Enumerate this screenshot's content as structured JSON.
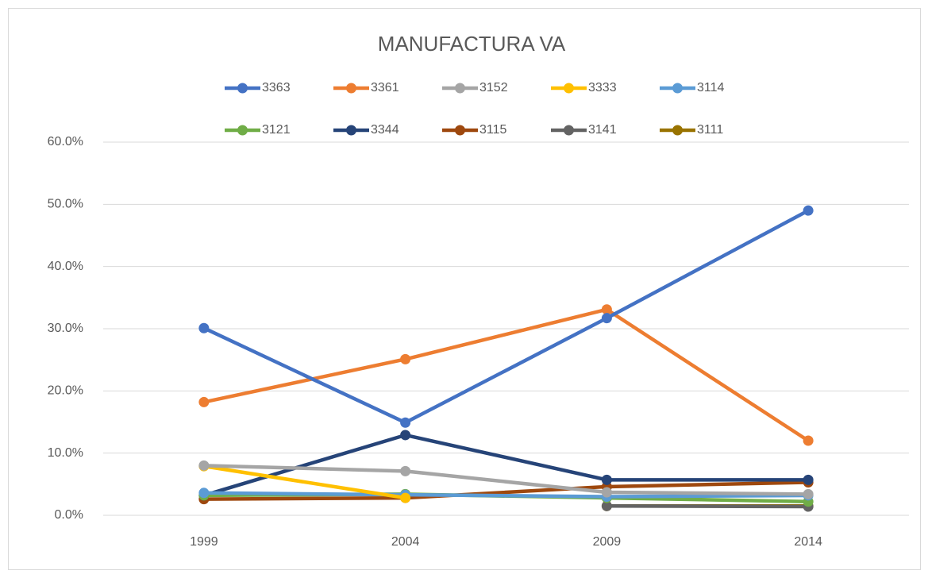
{
  "chart_data": {
    "type": "line",
    "title": "MANUFACTURA VA",
    "categories": [
      "1999",
      "2004",
      "2009",
      "2014"
    ],
    "ylim": [
      0,
      60
    ],
    "yticks": [
      {
        "value": 0,
        "label": "0.0%"
      },
      {
        "value": 10,
        "label": "10.0%"
      },
      {
        "value": 20,
        "label": "20.0%"
      },
      {
        "value": 30,
        "label": "30.0%"
      },
      {
        "value": 40,
        "label": "40.0%"
      },
      {
        "value": 50,
        "label": "50.0%"
      },
      {
        "value": 60,
        "label": "60.0%"
      }
    ],
    "grid": true,
    "legend": "top",
    "series": [
      {
        "name": "3363",
        "color": "#4472c4",
        "values": [
          30.1,
          14.9,
          31.7,
          49.0
        ]
      },
      {
        "name": "3361",
        "color": "#ed7d31",
        "values": [
          18.2,
          25.1,
          33.1,
          12.0
        ]
      },
      {
        "name": "3152",
        "color": "#a5a5a5",
        "values": [
          8.0,
          7.1,
          3.7,
          3.4
        ]
      },
      {
        "name": "3333",
        "color": "#ffc000",
        "values": [
          7.9,
          2.8,
          null,
          null
        ]
      },
      {
        "name": "3114",
        "color": "#5b9bd5",
        "values": [
          3.6,
          3.3,
          3.0,
          3.2
        ]
      },
      {
        "name": "3121",
        "color": "#70ad47",
        "values": [
          3.2,
          3.4,
          2.8,
          2.2
        ]
      },
      {
        "name": "3344",
        "color": "#264478",
        "values": [
          3.2,
          12.9,
          5.7,
          5.7
        ]
      },
      {
        "name": "3115",
        "color": "#9e480e",
        "values": [
          2.6,
          2.8,
          4.6,
          5.3
        ]
      },
      {
        "name": "3141",
        "color": "#636363",
        "values": [
          null,
          null,
          1.5,
          1.4
        ]
      },
      {
        "name": "3111",
        "color": "#997300",
        "values": [
          null,
          null,
          1.5,
          1.5
        ]
      }
    ]
  }
}
